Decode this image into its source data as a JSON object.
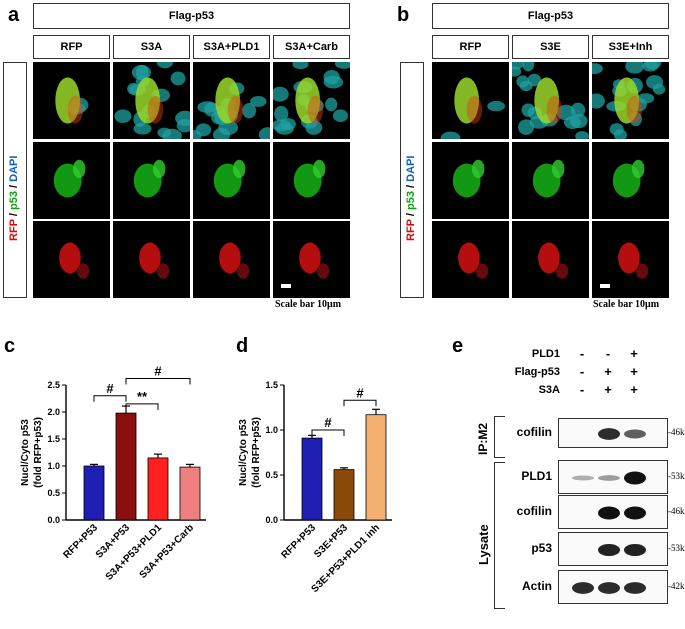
{
  "panel_a": {
    "letter": "a",
    "group_header": "Flag-p53",
    "columns": [
      "RFP",
      "S3A",
      "S3A+PLD1",
      "S3A+Carb"
    ],
    "stain_label": {
      "rfp": "RFP",
      "sep1": " / ",
      "p53": "p53",
      "sep2": " / ",
      "dapi": "DAPI"
    },
    "scale_bar": "Scale bar 10μm"
  },
  "panel_b": {
    "letter": "b",
    "group_header": "Flag-p53",
    "columns": [
      "RFP",
      "S3E",
      "S3E+Inh"
    ],
    "stain_label": {
      "rfp": "RFP",
      "sep1": " / ",
      "p53": "p53",
      "sep2": " / ",
      "dapi": "DAPI"
    },
    "scale_bar": "Scale bar 10μm"
  },
  "panel_c": {
    "letter": "c"
  },
  "panel_d": {
    "letter": "d"
  },
  "panel_e": {
    "letter": "e",
    "conditions": [
      {
        "label": "PLD1",
        "signs": [
          "-",
          "-",
          "+"
        ]
      },
      {
        "label": "Flag-p53",
        "signs": [
          "-",
          "+",
          "+"
        ]
      },
      {
        "label": "S3A",
        "signs": [
          "-",
          "+",
          "+"
        ]
      }
    ],
    "ip_label": "IP:M2",
    "lysate_label": "Lysate",
    "blots": [
      {
        "label": "cofilin",
        "kda": "-46kDa",
        "bands": [
          0,
          0.85,
          0.55
        ]
      },
      {
        "label": "PLD1",
        "kda": "-53kDa",
        "bands": [
          0.1,
          0.2,
          1.0
        ]
      },
      {
        "label": "cofilin",
        "kda": "-46kDa",
        "bands": [
          0,
          1.0,
          1.0
        ]
      },
      {
        "label": "p53",
        "kda": "-53kDa",
        "bands": [
          0,
          0.9,
          0.9
        ]
      },
      {
        "label": "Actin",
        "kda": "-42kDa",
        "bands": [
          0.85,
          0.85,
          0.85
        ]
      }
    ]
  },
  "chart_data": [
    {
      "type": "bar",
      "panel": "c",
      "ylabel_line1": "Nucl/Cyto p53",
      "ylabel_line2": "(fold RFP+p53)",
      "categories": [
        "RFP+P53",
        "S3A+P53",
        "S3A+P53+PLD1",
        "S3A+P53+Carb"
      ],
      "values": [
        1.0,
        1.98,
        1.15,
        0.98
      ],
      "errors": [
        0.03,
        0.13,
        0.07,
        0.05
      ],
      "colors": [
        "#1f1fb4",
        "#8b0f0f",
        "#ff2020",
        "#f08080"
      ],
      "ylim": [
        0,
        2.5
      ],
      "yticks": [
        "0.0",
        "0.5",
        "1.0",
        "1.5",
        "2.0",
        "2.5"
      ],
      "annotations": [
        {
          "from": 0,
          "to": 1,
          "text": "#"
        },
        {
          "from": 1,
          "to": 2,
          "text": "**"
        },
        {
          "from": 1,
          "to": 3,
          "text": "#"
        }
      ]
    },
    {
      "type": "bar",
      "panel": "d",
      "ylabel_line1": "Nucl/Cyto p53",
      "ylabel_line2": "(fold RFP+p53)",
      "categories": [
        "RFP+P53",
        "S3E+P53",
        "S3E+P53+PLD1 inh"
      ],
      "values": [
        0.91,
        0.56,
        1.17
      ],
      "errors": [
        0.03,
        0.02,
        0.06
      ],
      "colors": [
        "#1f1fb4",
        "#8b4a0a",
        "#f4b070"
      ],
      "ylim": [
        0,
        1.5
      ],
      "yticks": [
        "0.0",
        "0.5",
        "1.0",
        "1.5"
      ],
      "annotations": [
        {
          "from": 0,
          "to": 1,
          "text": "#"
        },
        {
          "from": 1,
          "to": 2,
          "text": "#"
        }
      ]
    }
  ]
}
